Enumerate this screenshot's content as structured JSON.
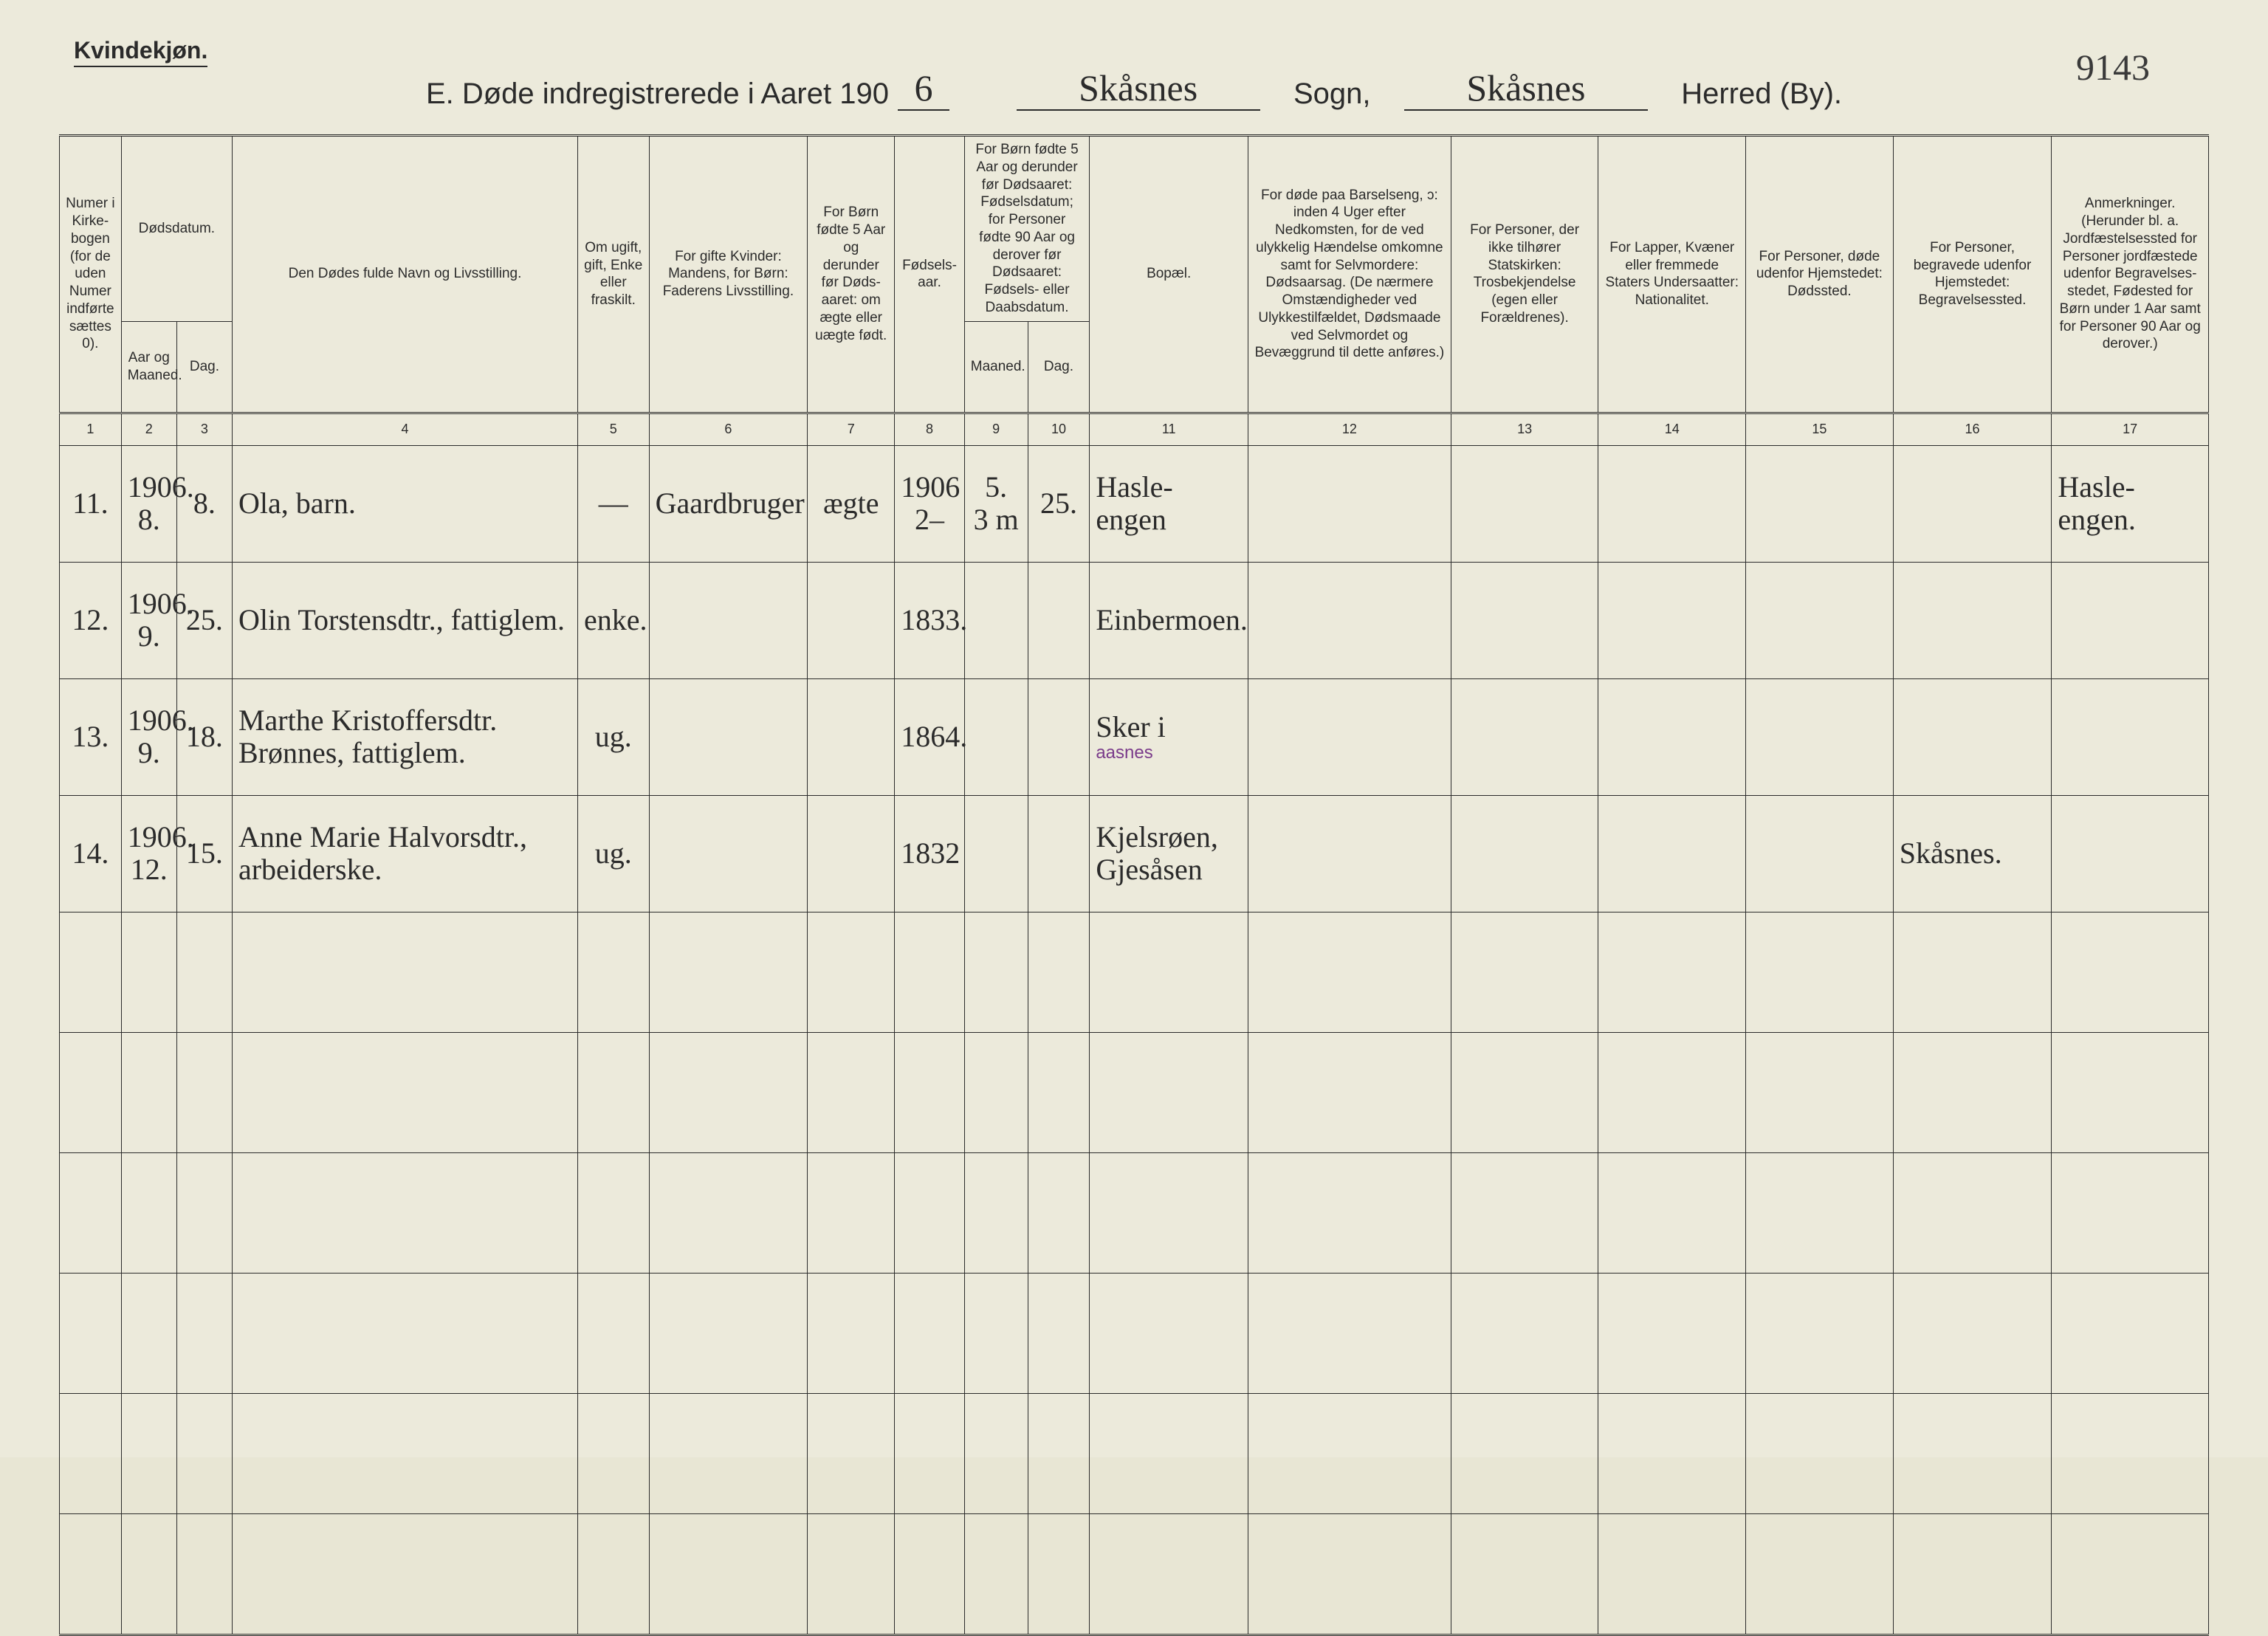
{
  "page_number": "9143",
  "top_left_label": "Kvindekjøn.",
  "title": {
    "prefix": "E.  Døde indregistrerede i Aaret 190",
    "year_written": "6",
    "midword1": "Sogn,",
    "sogn_written": "Skåsnes",
    "midword2": "Herred (By).",
    "herred_written": "Skåsnes"
  },
  "columns": {
    "c1": "Numer i Kirke­bogen (for de uden Numer indførte sættes 0).",
    "c2_3_group": "Dødsdatum.",
    "c2": "Aar og Maaned.",
    "c3": "Dag.",
    "c4": "Den Dødes fulde Navn og Livsstilling.",
    "c5": "Om ugift, gift, Enke eller fraskilt.",
    "c6": "For gifte Kvinder: Mandens, for Børn: Faderens Livsstilling.",
    "c7": "For Børn fødte 5 Aar og derunder før Døds­aaret: om ægte eller uægte født.",
    "c8": "Fødsels­aar.",
    "c9_10_group": "For Børn fødte 5 Aar og der­under før Dødsaaret: Fødselsdatum; for Personer fødte 90 Aar og derover før Dødsaaret: Fødsels- eller Daabsdatum.",
    "c9": "Maaned.",
    "c10": "Dag.",
    "c11": "Bopæl.",
    "c12": "For døde paa Barselseng, ɔ: inden 4 Uger efter Nedkomsten, for de ved ulykkelig Hændelse omkomne samt for Selvmordere: Dødsaarsag. (De nærmere Omstæn­digheder ved Ulykkes­tilfældet, Dødsmaade ved Selvmordet og Bevæggrund til dette anføres.)",
    "c13": "For Personer, der ikke tilhører Statskirken: Trosbekjendelse (egen eller Forældrenes).",
    "c14": "For Lapper, Kvæner eller fremmede Staters Undersaatter: Nationalitet.",
    "c15": "For Personer, døde udenfor Hjemstedet: Dødssted.",
    "c16": "For Personer, begravede udenfor Hjemstedet: Begravelsessted.",
    "c17": "Anmerkninger. (Herunder bl. a. Jordfæstelsessted for Personer jordfæstede udenfor Begravelses­stedet, Fødested for Børn under 1 Aar samt for Personer 90 Aar og derover.)"
  },
  "colnums": [
    "1",
    "2",
    "3",
    "4",
    "5",
    "6",
    "7",
    "8",
    "9",
    "10",
    "11",
    "12",
    "13",
    "14",
    "15",
    "16",
    "17"
  ],
  "rows": [
    {
      "no": "11.",
      "aar_mnd": "1906.\n8.",
      "dag": "8.",
      "navn": "Ola,  barn.",
      "stand": "—",
      "forelder": "Gaardbruger",
      "aegte": "ægte",
      "faar": "1906\n2–",
      "fmnd": "5.\n3 m",
      "fdag": "25.",
      "bopael": "Hasle-engen",
      "anm": "Hasle-engen."
    },
    {
      "no": "12.",
      "aar_mnd": "1906.\n9.",
      "dag": "25.",
      "navn": "Olin Torstensdtr., fattiglem.",
      "stand": "enke.",
      "forelder": "",
      "aegte": "",
      "faar": "1833.",
      "fmnd": "",
      "fdag": "",
      "bopael": "Einbermoen.",
      "anm": ""
    },
    {
      "no": "13.",
      "aar_mnd": "1906.\n9.",
      "dag": "18.",
      "navn": "Marthe Kristoffersdtr. Brønnes, fattiglem.",
      "stand": "ug.",
      "forelder": "",
      "aegte": "",
      "faar": "1864.",
      "fmnd": "",
      "fdag": "",
      "bopael": "Sker i",
      "bopael_annot": "aasnes",
      "anm": ""
    },
    {
      "no": "14.",
      "aar_mnd": "1906.\n12.",
      "dag": "15.",
      "navn": "Anne Marie Halvorsdtr., arbeiderske.",
      "stand": "ug.",
      "forelder": "",
      "aegte": "",
      "faar": "1832",
      "fmnd": "",
      "fdag": "",
      "bopael": "Kjelsrøen, Gjesåsen",
      "anm": "",
      "begrav": "Skåsnes."
    }
  ],
  "empty_rows": 6,
  "colors": {
    "paper": "#eceadb",
    "ink": "#2b2b2b",
    "annotation": "#7a3b8a"
  }
}
